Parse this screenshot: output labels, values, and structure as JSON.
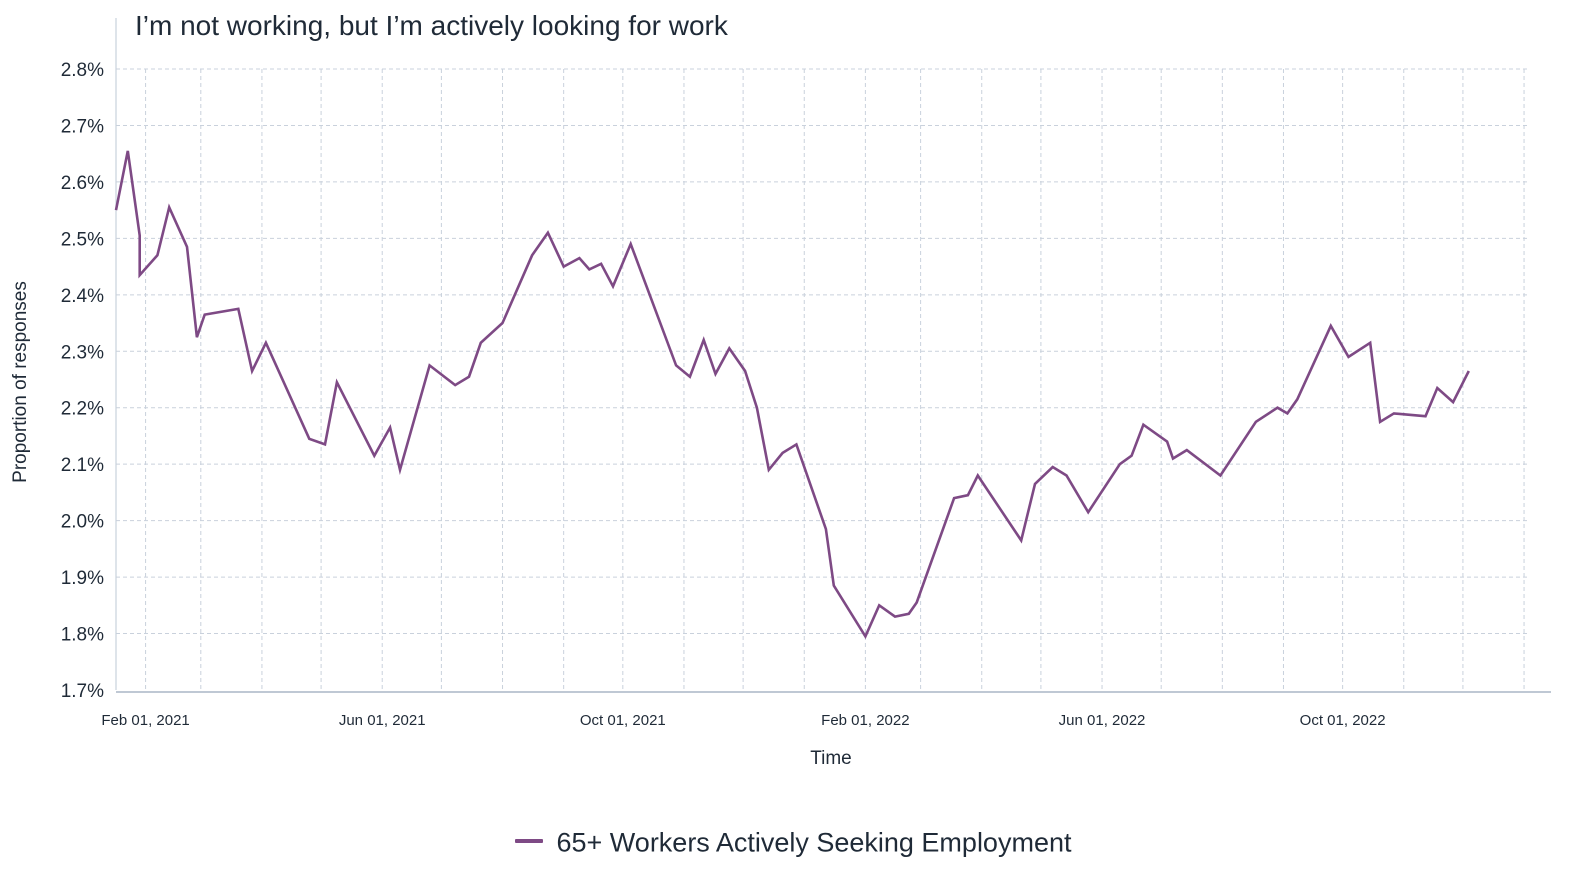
{
  "chart_data": {
    "type": "line",
    "title": "I’m not working, but I’m actively looking for work",
    "xlabel": "Time",
    "ylabel": "Proportion of responses",
    "ylim": [
      1.7,
      2.8
    ],
    "yticks": [
      "1.7%",
      "1.8%",
      "1.9%",
      "2.0%",
      "2.1%",
      "2.2%",
      "2.3%",
      "2.4%",
      "2.5%",
      "2.6%",
      "2.7%",
      "2.8%"
    ],
    "xlim": [
      "2021-01-17",
      "2023-01-03"
    ],
    "xticks": [
      {
        "date": "2021-02-01",
        "label": "Feb 01, 2021"
      },
      {
        "date": "2021-06-01",
        "label": "Jun 01, 2021"
      },
      {
        "date": "2021-10-01",
        "label": "Oct 01, 2021"
      },
      {
        "date": "2022-02-01",
        "label": "Feb 01, 2022"
      },
      {
        "date": "2022-06-01",
        "label": "Jun 01, 2022"
      },
      {
        "date": "2022-10-01",
        "label": "Oct 01, 2022"
      }
    ],
    "grid": true,
    "legend_position": "bottom-center",
    "series": [
      {
        "name": "65+ Workers Actively Seeking Employment",
        "color": "#7e4a85",
        "points": [
          [
            "2021-01-17",
            2.55
          ],
          [
            "2021-01-23",
            2.655
          ],
          [
            "2021-01-29",
            2.505
          ],
          [
            "2021-01-29",
            2.435
          ],
          [
            "2021-02-07",
            2.47
          ],
          [
            "2021-02-13",
            2.555
          ],
          [
            "2021-02-22",
            2.485
          ],
          [
            "2021-02-27",
            2.325
          ],
          [
            "2021-03-03",
            2.365
          ],
          [
            "2021-03-20",
            2.375
          ],
          [
            "2021-03-27",
            2.265
          ],
          [
            "2021-04-03",
            2.315
          ],
          [
            "2021-04-25",
            2.145
          ],
          [
            "2021-05-03",
            2.135
          ],
          [
            "2021-05-09",
            2.245
          ],
          [
            "2021-05-28",
            2.115
          ],
          [
            "2021-06-05",
            2.165
          ],
          [
            "2021-06-10",
            2.09
          ],
          [
            "2021-06-25",
            2.275
          ],
          [
            "2021-07-08",
            2.24
          ],
          [
            "2021-07-15",
            2.255
          ],
          [
            "2021-07-21",
            2.315
          ],
          [
            "2021-08-01",
            2.35
          ],
          [
            "2021-08-16",
            2.47
          ],
          [
            "2021-08-24",
            2.51
          ],
          [
            "2021-09-01",
            2.45
          ],
          [
            "2021-09-09",
            2.465
          ],
          [
            "2021-09-14",
            2.445
          ],
          [
            "2021-09-20",
            2.455
          ],
          [
            "2021-09-26",
            2.415
          ],
          [
            "2021-10-05",
            2.49
          ],
          [
            "2021-10-28",
            2.275
          ],
          [
            "2021-11-04",
            2.255
          ],
          [
            "2021-11-11",
            2.32
          ],
          [
            "2021-11-17",
            2.26
          ],
          [
            "2021-11-24",
            2.305
          ],
          [
            "2021-12-02",
            2.265
          ],
          [
            "2021-12-08",
            2.2
          ],
          [
            "2021-12-14",
            2.09
          ],
          [
            "2021-12-21",
            2.12
          ],
          [
            "2021-12-28",
            2.135
          ],
          [
            "2022-01-12",
            1.985
          ],
          [
            "2022-01-16",
            1.885
          ],
          [
            "2022-02-01",
            1.795
          ],
          [
            "2022-02-08",
            1.85
          ],
          [
            "2022-02-16",
            1.83
          ],
          [
            "2022-02-23",
            1.835
          ],
          [
            "2022-02-27",
            1.855
          ],
          [
            "2022-03-18",
            2.04
          ],
          [
            "2022-03-25",
            2.045
          ],
          [
            "2022-03-30",
            2.08
          ],
          [
            "2022-04-21",
            1.965
          ],
          [
            "2022-04-28",
            2.065
          ],
          [
            "2022-05-07",
            2.095
          ],
          [
            "2022-05-14",
            2.08
          ],
          [
            "2022-05-25",
            2.015
          ],
          [
            "2022-06-10",
            2.1
          ],
          [
            "2022-06-16",
            2.115
          ],
          [
            "2022-06-22",
            2.17
          ],
          [
            "2022-07-04",
            2.14
          ],
          [
            "2022-07-07",
            2.11
          ],
          [
            "2022-07-14",
            2.125
          ],
          [
            "2022-07-31",
            2.08
          ],
          [
            "2022-08-18",
            2.175
          ],
          [
            "2022-08-29",
            2.2
          ],
          [
            "2022-09-03",
            2.19
          ],
          [
            "2022-09-08",
            2.215
          ],
          [
            "2022-09-25",
            2.345
          ],
          [
            "2022-10-04",
            2.29
          ],
          [
            "2022-10-15",
            2.315
          ],
          [
            "2022-10-20",
            2.175
          ],
          [
            "2022-10-27",
            2.19
          ],
          [
            "2022-11-12",
            2.185
          ],
          [
            "2022-11-18",
            2.235
          ],
          [
            "2022-11-26",
            2.21
          ],
          [
            "2022-12-04",
            2.265
          ]
        ]
      }
    ]
  }
}
